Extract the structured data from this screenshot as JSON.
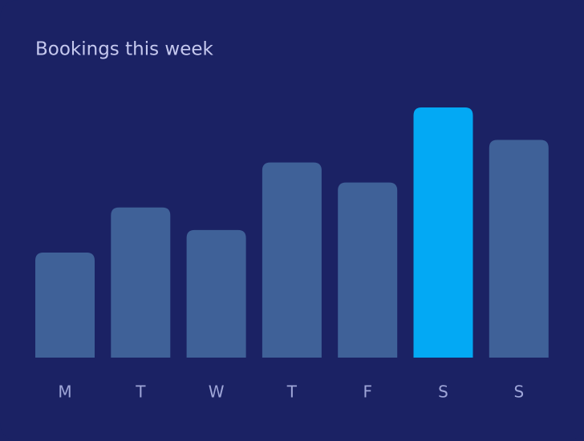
{
  "chart_data": {
    "type": "bar",
    "title": "Bookings this week",
    "categories": [
      "M",
      "T",
      "W",
      "T",
      "F",
      "S",
      "S"
    ],
    "values": [
      42,
      60,
      51,
      78,
      70,
      100,
      87
    ],
    "colors": [
      "#3f6198",
      "#3f6198",
      "#3f6198",
      "#3f6198",
      "#3f6198",
      "#03a9f4",
      "#3f6198"
    ]
  }
}
